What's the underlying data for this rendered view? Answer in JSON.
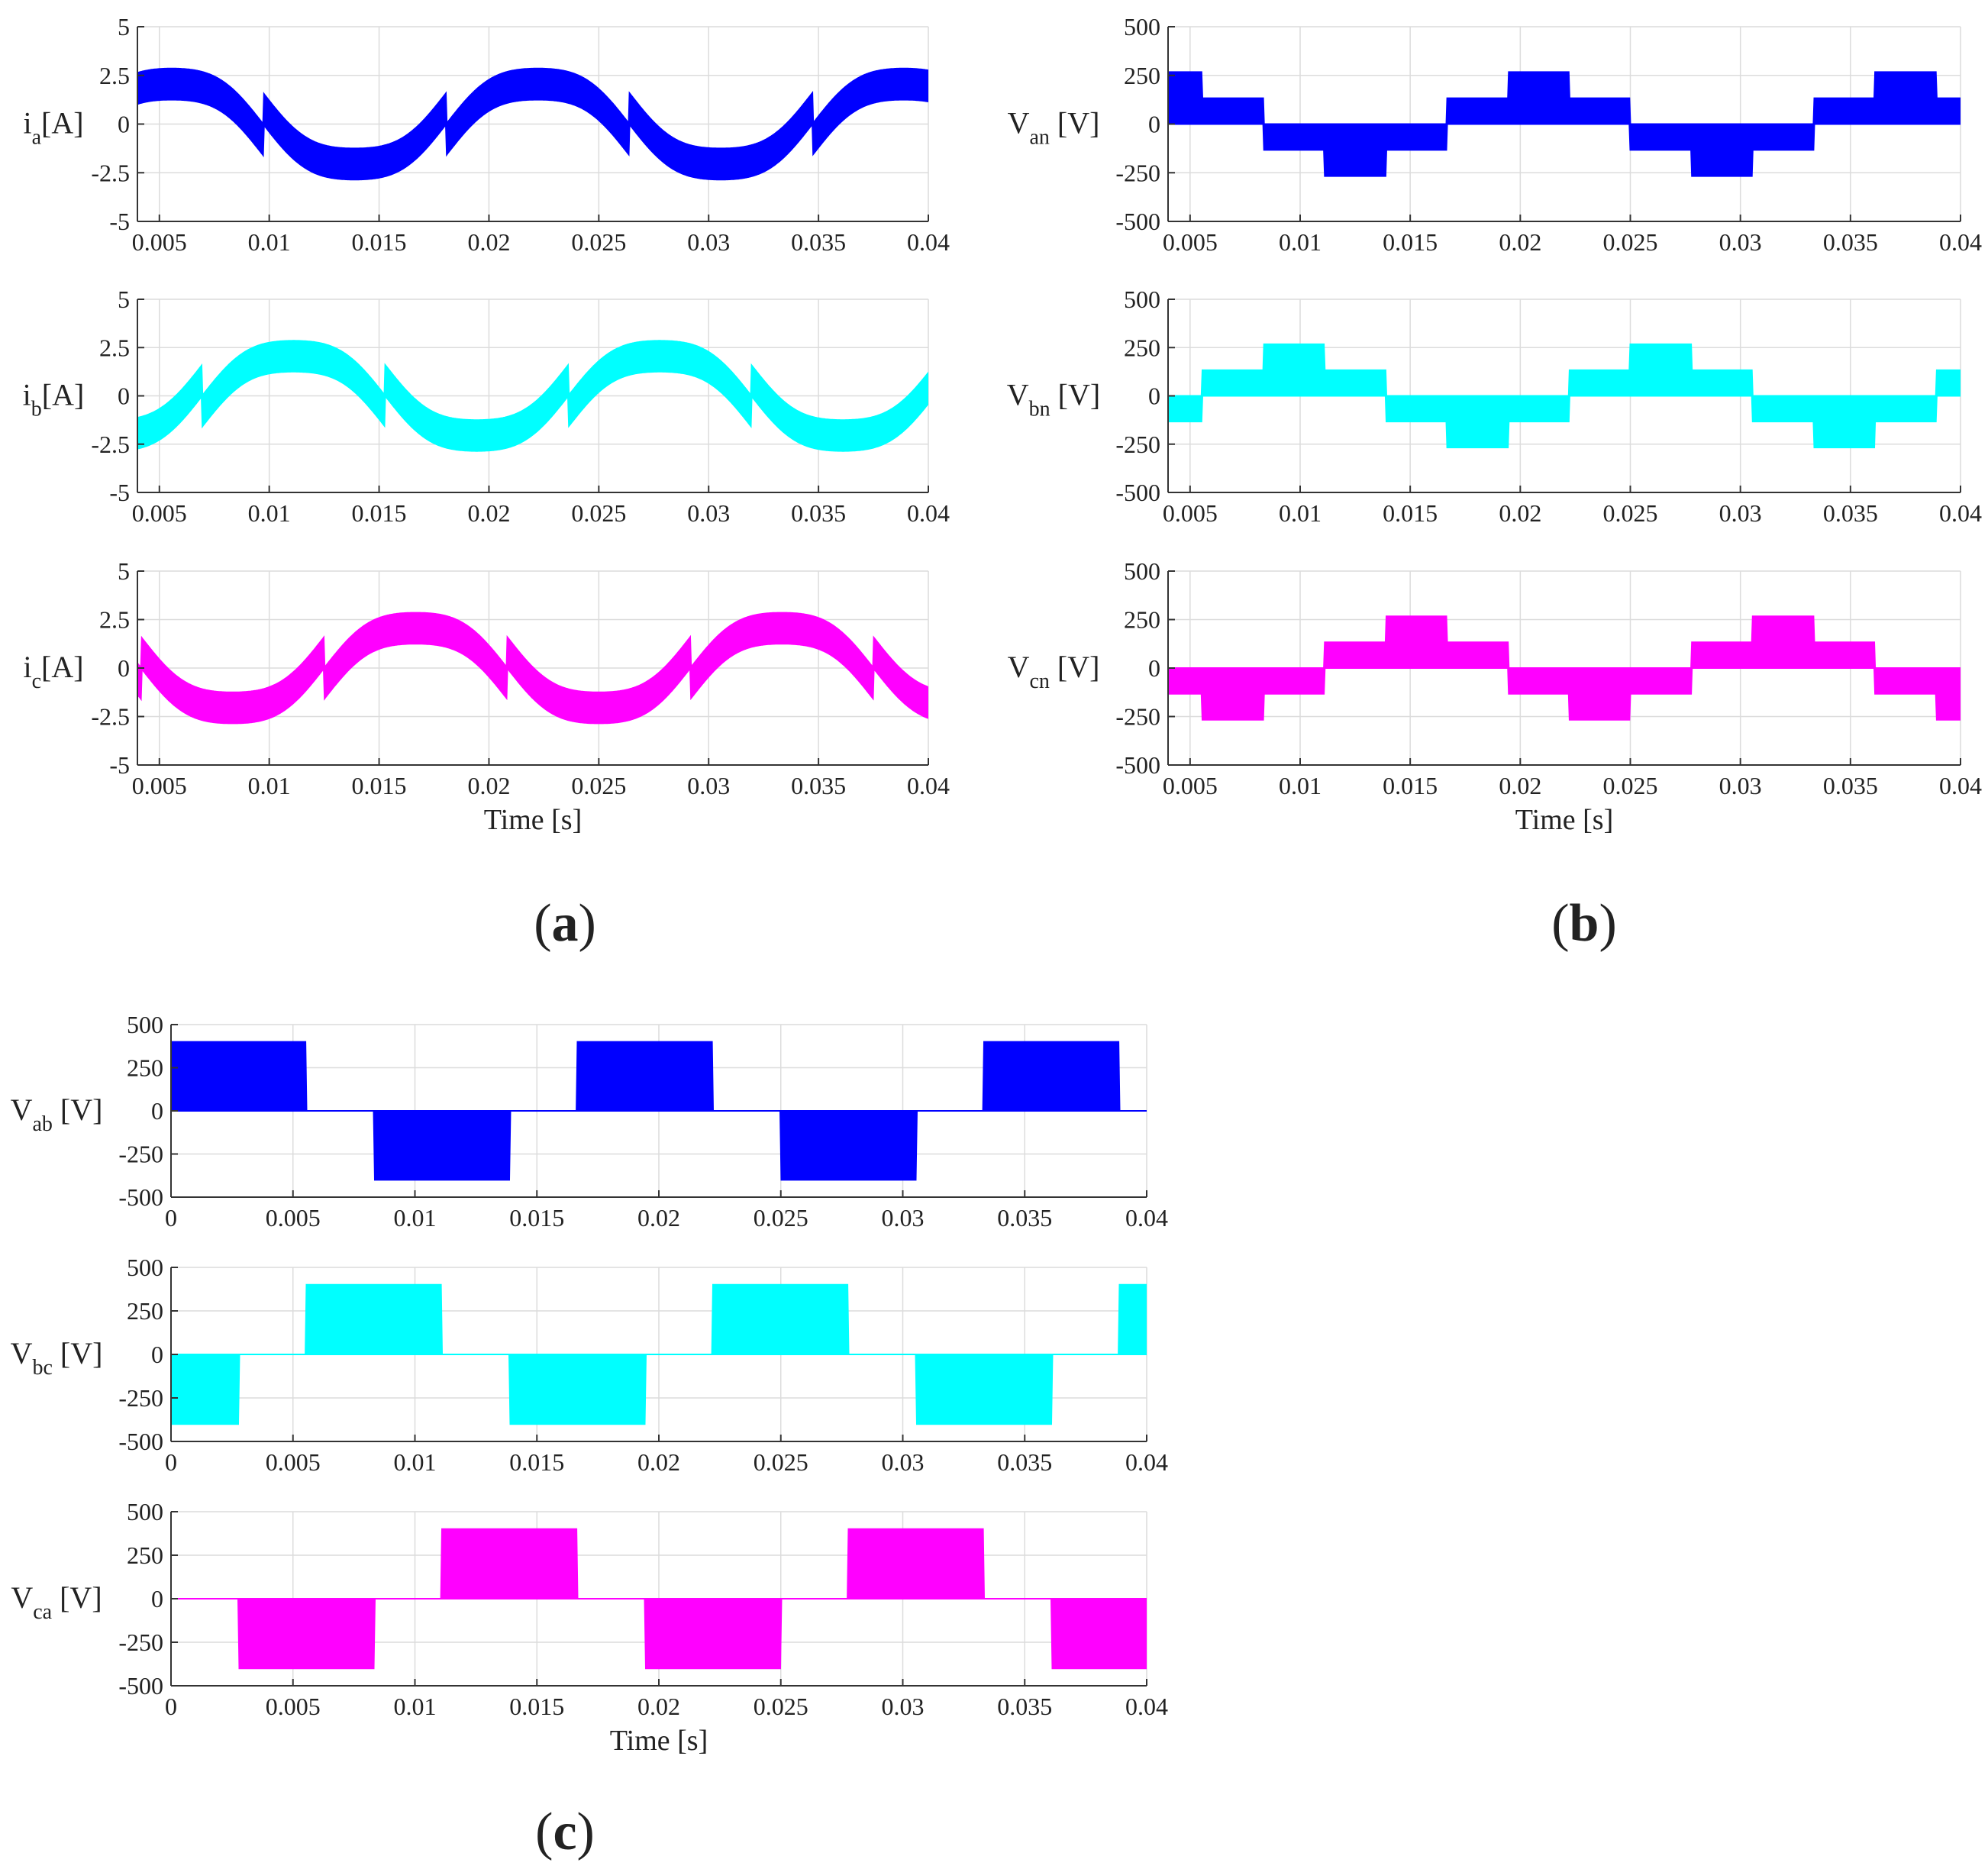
{
  "colors": {
    "a": "#0000ff",
    "b": "#00ffff",
    "c": "#ff00ff"
  },
  "chart_data": [
    {
      "id": "a-top",
      "type": "area",
      "panel": "a",
      "ylabel": "i",
      "ylabel_sub": "a",
      "ylabel_tail": "[A]",
      "xlim": [
        0.004,
        0.04
      ],
      "ylim": [
        -5,
        5
      ],
      "xticks": [
        0.005,
        0.01,
        0.015,
        0.02,
        0.025,
        0.03,
        0.035,
        0.04
      ],
      "yticks": [
        -5,
        -2.5,
        0,
        2.5,
        5
      ],
      "ytick_labels": [
        "-5",
        "-2.5",
        "0",
        "2.5",
        "5"
      ],
      "xlabel": "",
      "signal": {
        "kind": "current",
        "phase_deg": -30,
        "amplitude": 3.1,
        "band_width": 1.6,
        "frequency_hz": 60
      },
      "color": "a"
    },
    {
      "id": "a-mid",
      "type": "area",
      "panel": "a",
      "ylabel": "i",
      "ylabel_sub": "b",
      "ylabel_tail": "[A]",
      "xlim": [
        0.004,
        0.04
      ],
      "ylim": [
        -5,
        5
      ],
      "xticks": [
        0.005,
        0.01,
        0.015,
        0.02,
        0.025,
        0.03,
        0.035,
        0.04
      ],
      "yticks": [
        -5,
        -2.5,
        0,
        2.5,
        5
      ],
      "ytick_labels": [
        "-5",
        "-2.5",
        "0",
        "2.5",
        "5"
      ],
      "xlabel": "",
      "signal": {
        "kind": "current",
        "phase_deg": -150,
        "amplitude": 3.1,
        "band_width": 1.6,
        "frequency_hz": 60
      },
      "color": "b"
    },
    {
      "id": "a-bot",
      "type": "area",
      "panel": "a",
      "ylabel": "i",
      "ylabel_sub": "c",
      "ylabel_tail": "[A]",
      "xlim": [
        0.004,
        0.04
      ],
      "ylim": [
        -5,
        5
      ],
      "xticks": [
        0.005,
        0.01,
        0.015,
        0.02,
        0.025,
        0.03,
        0.035,
        0.04
      ],
      "yticks": [
        -5,
        -2.5,
        0,
        2.5,
        5
      ],
      "ytick_labels": [
        "-5",
        "-2.5",
        "0",
        "2.5",
        "5"
      ],
      "xlabel": "Time [s]",
      "signal": {
        "kind": "current",
        "phase_deg": 90,
        "amplitude": 3.1,
        "band_width": 1.6,
        "frequency_hz": 60
      },
      "color": "c"
    },
    {
      "id": "b-top",
      "type": "area",
      "panel": "b",
      "ylabel": "V",
      "ylabel_sub": "an",
      "ylabel_tail": " [V]",
      "xlim": [
        0.004,
        0.04
      ],
      "ylim": [
        -500,
        500
      ],
      "xticks": [
        0.005,
        0.01,
        0.015,
        0.02,
        0.025,
        0.03,
        0.035,
        0.04
      ],
      "yticks": [
        -500,
        -250,
        0,
        250,
        500
      ],
      "ytick_labels": [
        "-500",
        "-250",
        "0",
        "250",
        "500"
      ],
      "xlabel": "",
      "signal": {
        "kind": "phase-voltage",
        "phase_deg": 0,
        "levels": [
          133,
          267
        ],
        "frequency_hz": 60
      },
      "color": "a"
    },
    {
      "id": "b-mid",
      "type": "area",
      "panel": "b",
      "ylabel": "V",
      "ylabel_sub": "bn",
      "ylabel_tail": " [V]",
      "xlim": [
        0.004,
        0.04
      ],
      "ylim": [
        -500,
        500
      ],
      "xticks": [
        0.005,
        0.01,
        0.015,
        0.02,
        0.025,
        0.03,
        0.035,
        0.04
      ],
      "yticks": [
        -500,
        -250,
        0,
        250,
        500
      ],
      "ytick_labels": [
        "-500",
        "-250",
        "0",
        "250",
        "500"
      ],
      "xlabel": "",
      "signal": {
        "kind": "phase-voltage",
        "phase_deg": -120,
        "levels": [
          133,
          267
        ],
        "frequency_hz": 60
      },
      "color": "b"
    },
    {
      "id": "b-bot",
      "type": "area",
      "panel": "b",
      "ylabel": "V",
      "ylabel_sub": "cn",
      "ylabel_tail": " [V]",
      "xlim": [
        0.004,
        0.04
      ],
      "ylim": [
        -500,
        500
      ],
      "xticks": [
        0.005,
        0.01,
        0.015,
        0.02,
        0.025,
        0.03,
        0.035,
        0.04
      ],
      "yticks": [
        -500,
        -250,
        0,
        250,
        500
      ],
      "ytick_labels": [
        "-500",
        "-250",
        "0",
        "250",
        "500"
      ],
      "xlabel": "Time [s]",
      "signal": {
        "kind": "phase-voltage",
        "phase_deg": 120,
        "levels": [
          133,
          267
        ],
        "frequency_hz": 60
      },
      "color": "c"
    },
    {
      "id": "c-top",
      "type": "area",
      "panel": "c",
      "ylabel": "V",
      "ylabel_sub": "ab",
      "ylabel_tail": " [V]",
      "xlim": [
        0,
        0.04
      ],
      "ylim": [
        -500,
        500
      ],
      "xticks": [
        0,
        0.005,
        0.01,
        0.015,
        0.02,
        0.025,
        0.03,
        0.035,
        0.04
      ],
      "yticks": [
        -500,
        -250,
        0,
        250,
        500
      ],
      "ytick_labels": [
        "-500",
        "-250",
        "0",
        "250",
        "500"
      ],
      "xlabel": "",
      "signal": {
        "kind": "line-voltage",
        "phase_deg": 30,
        "amplitude": 400,
        "frequency_hz": 60
      },
      "color": "a"
    },
    {
      "id": "c-mid",
      "type": "area",
      "panel": "c",
      "ylabel": "V",
      "ylabel_sub": "bc",
      "ylabel_tail": " [V]",
      "xlim": [
        0,
        0.04
      ],
      "ylim": [
        -500,
        500
      ],
      "xticks": [
        0,
        0.005,
        0.01,
        0.015,
        0.02,
        0.025,
        0.03,
        0.035,
        0.04
      ],
      "yticks": [
        -500,
        -250,
        0,
        250,
        500
      ],
      "ytick_labels": [
        "-500",
        "-250",
        "0",
        "250",
        "500"
      ],
      "xlabel": "",
      "signal": {
        "kind": "line-voltage",
        "phase_deg": -90,
        "amplitude": 400,
        "frequency_hz": 60
      },
      "color": "b"
    },
    {
      "id": "c-bot",
      "type": "area",
      "panel": "c",
      "ylabel": "V",
      "ylabel_sub": "ca",
      "ylabel_tail": " [V]",
      "xlim": [
        0,
        0.04
      ],
      "ylim": [
        -500,
        500
      ],
      "xticks": [
        0,
        0.005,
        0.01,
        0.015,
        0.02,
        0.025,
        0.03,
        0.035,
        0.04
      ],
      "yticks": [
        -500,
        -250,
        0,
        250,
        500
      ],
      "ytick_labels": [
        "-500",
        "-250",
        "0",
        "250",
        "500"
      ],
      "xlabel": "Time [s]",
      "signal": {
        "kind": "line-voltage",
        "phase_deg": 150,
        "amplitude": 400,
        "frequency_hz": 60
      },
      "color": "c"
    }
  ],
  "panel_labels": [
    {
      "panel": "a",
      "open": "(",
      "letter": "a",
      "close": ")"
    },
    {
      "panel": "b",
      "open": "(",
      "letter": "b",
      "close": ")"
    },
    {
      "panel": "c",
      "open": "(",
      "letter": "c",
      "close": ")"
    }
  ]
}
